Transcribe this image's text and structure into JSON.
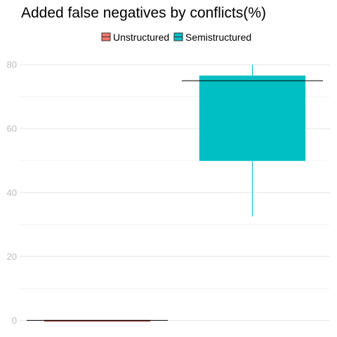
{
  "chart_data": {
    "type": "boxplot",
    "title": "Added false negatives by conflicts(%)",
    "xlabel": "",
    "ylabel": "",
    "ylim": [
      -3,
      84
    ],
    "yticks": [
      0,
      20,
      40,
      60,
      80
    ],
    "grid": true,
    "legend_position": "top",
    "series": [
      {
        "name": "Unstructured",
        "color": "#f8766d",
        "outline": "#8b1a1a",
        "stats": {
          "min": 0,
          "q1": 0,
          "median": 0,
          "q3": 0,
          "max": 0
        }
      },
      {
        "name": "Semistructured",
        "color": "#00bfc4",
        "outline": "#00bfc4",
        "stats": {
          "min": 32.5,
          "q1": 50,
          "median": 75,
          "q3": 76.5,
          "max": 80
        }
      }
    ]
  }
}
